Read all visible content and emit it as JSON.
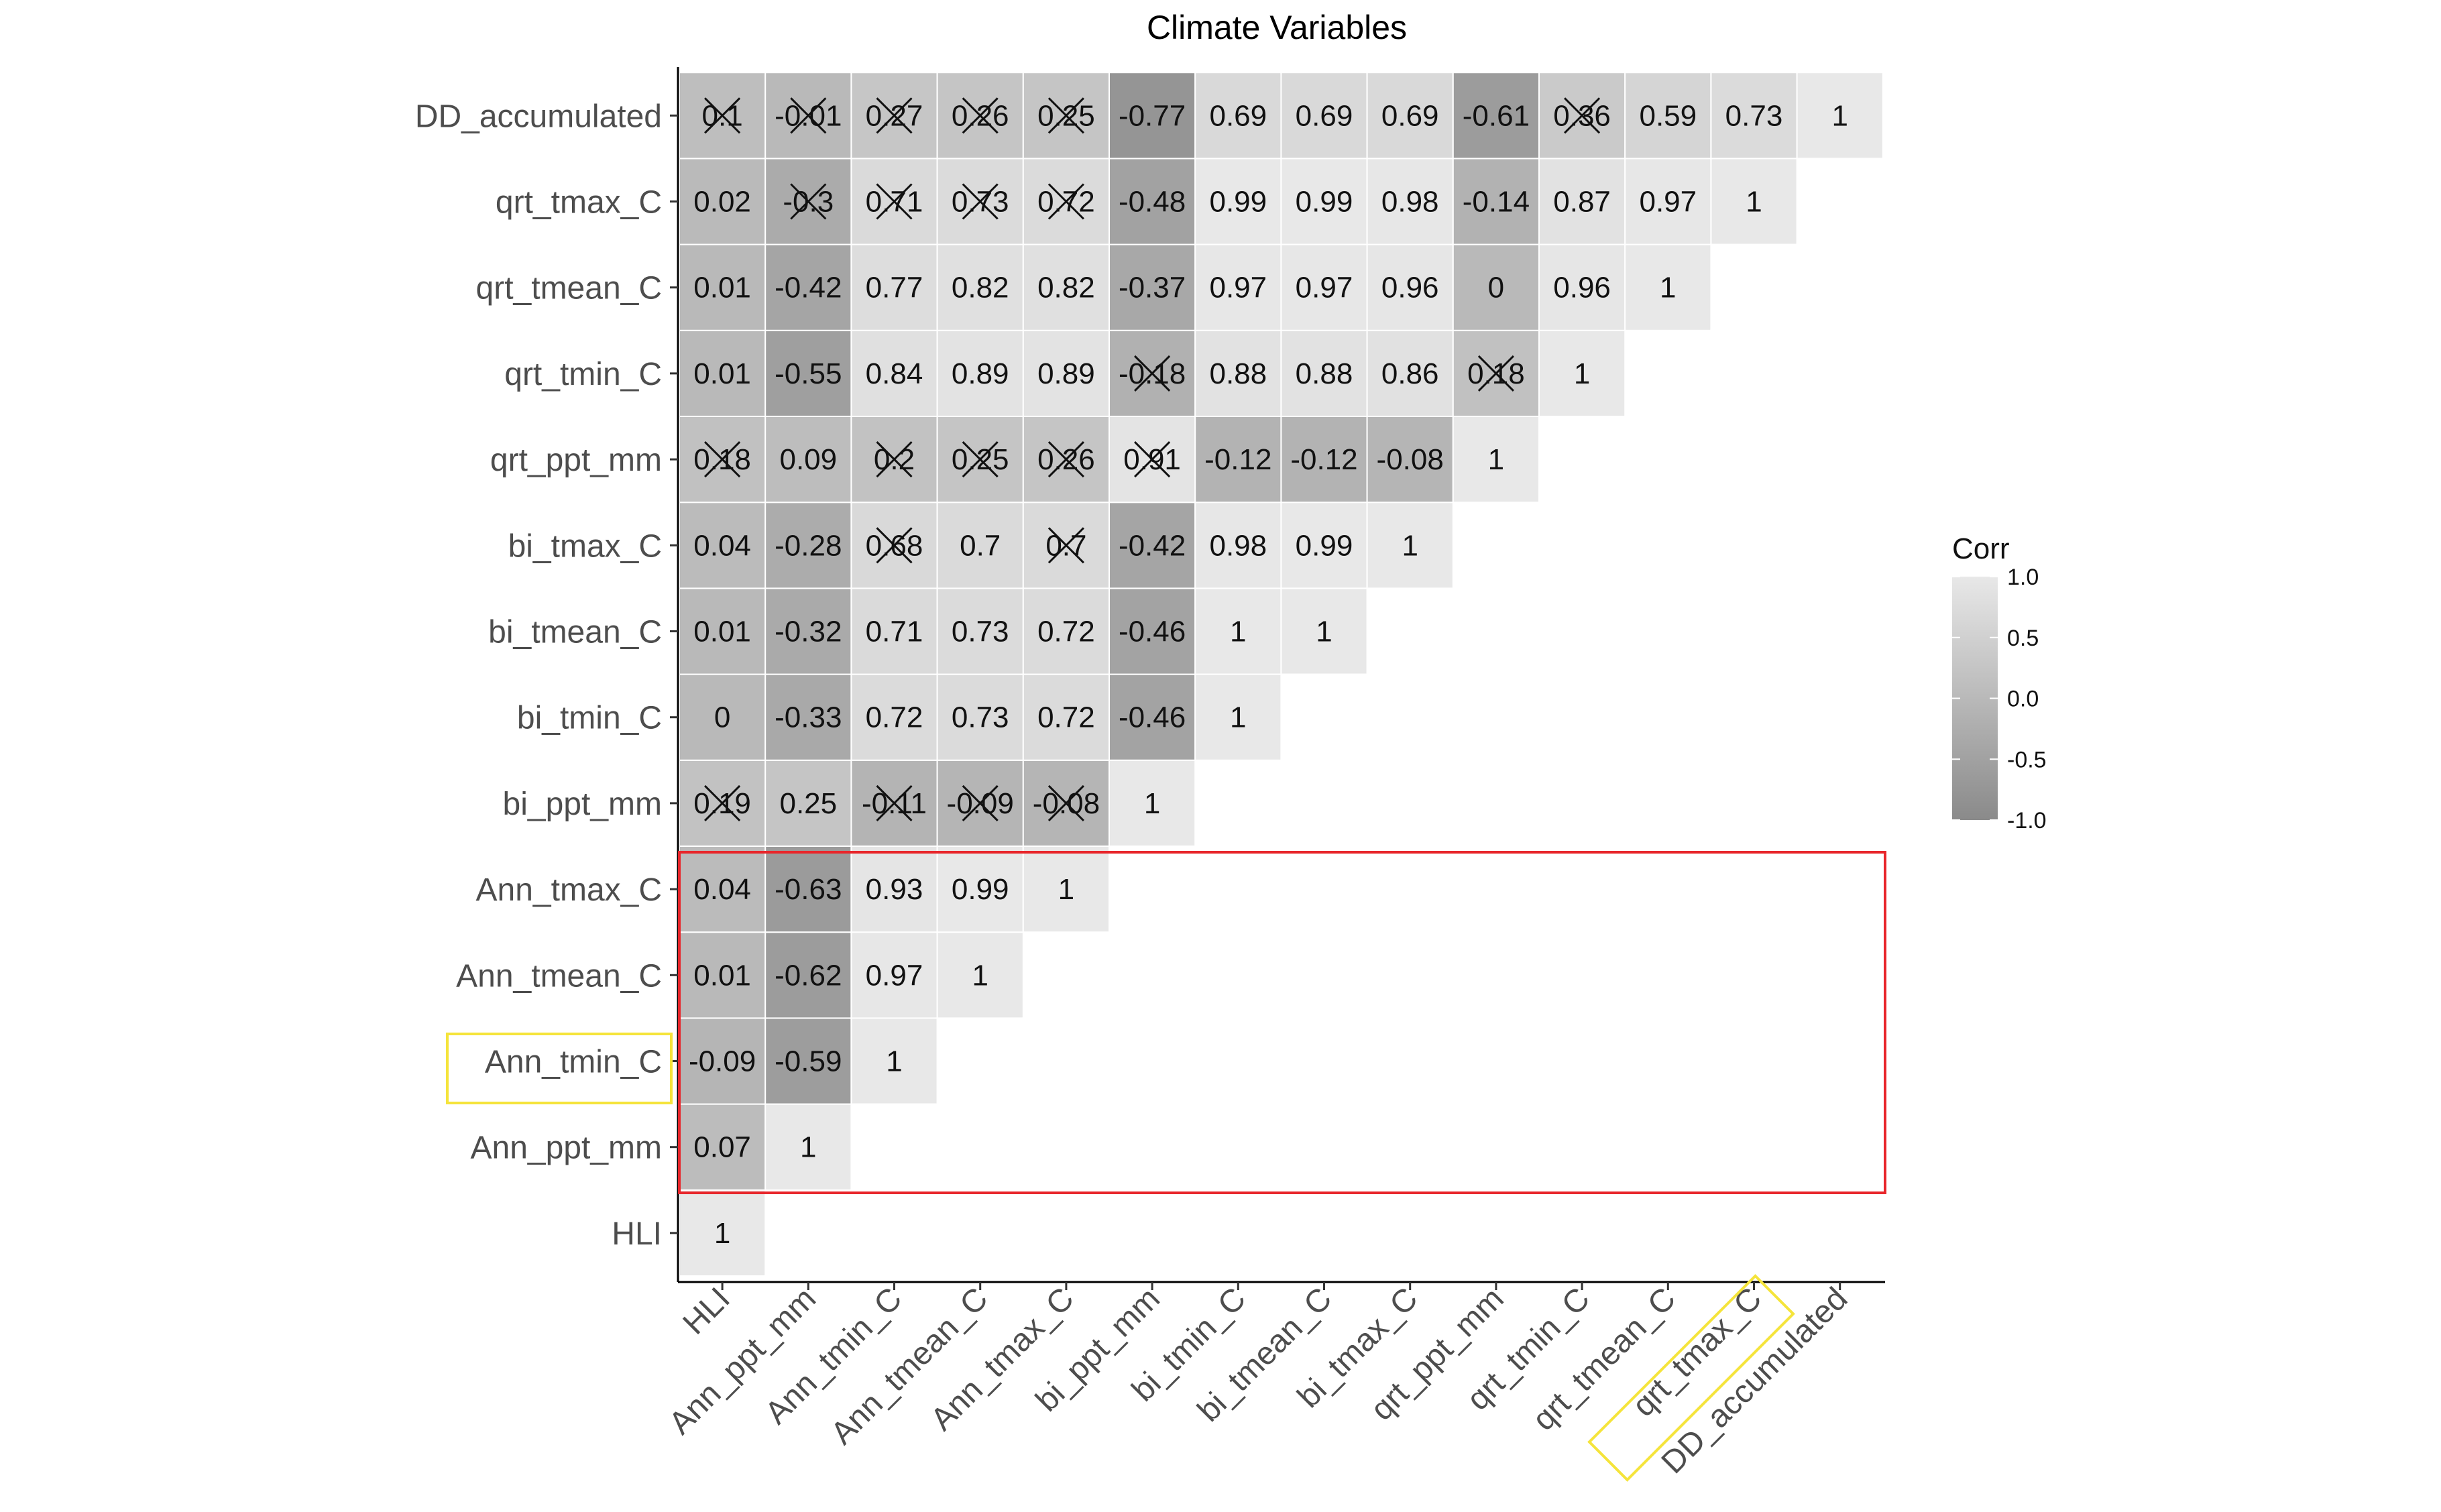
{
  "chart_data": {
    "type": "heatmap",
    "title": "Climate Variables",
    "variables": [
      "HLI",
      "Ann_ppt_mm",
      "Ann_tmin_C",
      "Ann_tmean_C",
      "Ann_tmax_C",
      "bi_ppt_mm",
      "bi_tmin_C",
      "bi_tmean_C",
      "bi_tmax_C",
      "qrt_ppt_mm",
      "qrt_tmin_C",
      "qrt_tmean_C",
      "qrt_tmax_C",
      "DD_accumulated"
    ],
    "matrix_lower_triangle": [
      [
        "1"
      ],
      [
        "0.07",
        "1"
      ],
      [
        "-0.09",
        "-0.59",
        "1"
      ],
      [
        "0.01",
        "-0.62",
        "0.97",
        "1"
      ],
      [
        "0.04",
        "-0.63",
        "0.93",
        "0.99",
        "1"
      ],
      [
        "0.19",
        "0.25",
        "-0.11",
        "-0.09",
        "-0.08",
        "1"
      ],
      [
        "0",
        "-0.33",
        "0.72",
        "0.73",
        "0.72",
        "-0.46",
        "1"
      ],
      [
        "0.01",
        "-0.32",
        "0.71",
        "0.73",
        "0.72",
        "-0.46",
        "1",
        "1"
      ],
      [
        "0.04",
        "-0.28",
        "0.68",
        "0.7",
        "0.7",
        "-0.42",
        "0.98",
        "0.99",
        "1"
      ],
      [
        "0.18",
        "0.09",
        "0.2",
        "0.25",
        "0.26",
        "0.91",
        "-0.12",
        "-0.12",
        "-0.08",
        "1"
      ],
      [
        "0.01",
        "-0.55",
        "0.84",
        "0.89",
        "0.89",
        "-0.18",
        "0.88",
        "0.88",
        "0.86",
        "0.18",
        "1"
      ],
      [
        "0.01",
        "-0.42",
        "0.77",
        "0.82",
        "0.82",
        "-0.37",
        "0.97",
        "0.97",
        "0.96",
        "0",
        "0.96",
        "1"
      ],
      [
        "0.02",
        "-0.3",
        "0.71",
        "0.73",
        "0.72",
        "-0.48",
        "0.99",
        "0.99",
        "0.98",
        "-0.14",
        "0.87",
        "0.97",
        "1"
      ],
      [
        "0.1",
        "-0.01",
        "0.27",
        "0.26",
        "0.25",
        "-0.77",
        "0.69",
        "0.69",
        "0.69",
        "-0.61",
        "0.36",
        "0.59",
        "0.73",
        "1"
      ]
    ],
    "crossed_out": [
      [
        5,
        0
      ],
      [
        9,
        0
      ],
      [
        13,
        0
      ],
      [
        5,
        2
      ],
      [
        8,
        2
      ],
      [
        9,
        2
      ],
      [
        12,
        2
      ],
      [
        13,
        2
      ],
      [
        5,
        3
      ],
      [
        9,
        3
      ],
      [
        12,
        3
      ],
      [
        13,
        3
      ],
      [
        5,
        4
      ],
      [
        8,
        4
      ],
      [
        9,
        4
      ],
      [
        12,
        4
      ],
      [
        13,
        4
      ],
      [
        12,
        1
      ],
      [
        13,
        1
      ],
      [
        9,
        5
      ],
      [
        10,
        5
      ],
      [
        10,
        9
      ],
      [
        13,
        10
      ]
    ],
    "value_range": [
      -1,
      1
    ],
    "grid": false,
    "legend": {
      "title": "Corr",
      "ticks": [
        "1.0",
        "0.5",
        "0.0",
        "-0.5",
        "-1.0"
      ],
      "placement": "right"
    },
    "annotations": {
      "red_box_rows": [
        "Ann_tmax_C",
        "Ann_tmean_C",
        "Ann_tmin_C",
        "Ann_ppt_mm"
      ],
      "yellow_highlight_labels": [
        "Ann_tmin_C",
        "qrt_tmax_C"
      ]
    },
    "colors": {
      "high": "#e8e8e8",
      "low": "#8a8a8a",
      "highlight_box": "#e8262b",
      "highlight_label": "#f5e43b",
      "text": "#111111",
      "axis_label": "#4d4d4d"
    }
  }
}
